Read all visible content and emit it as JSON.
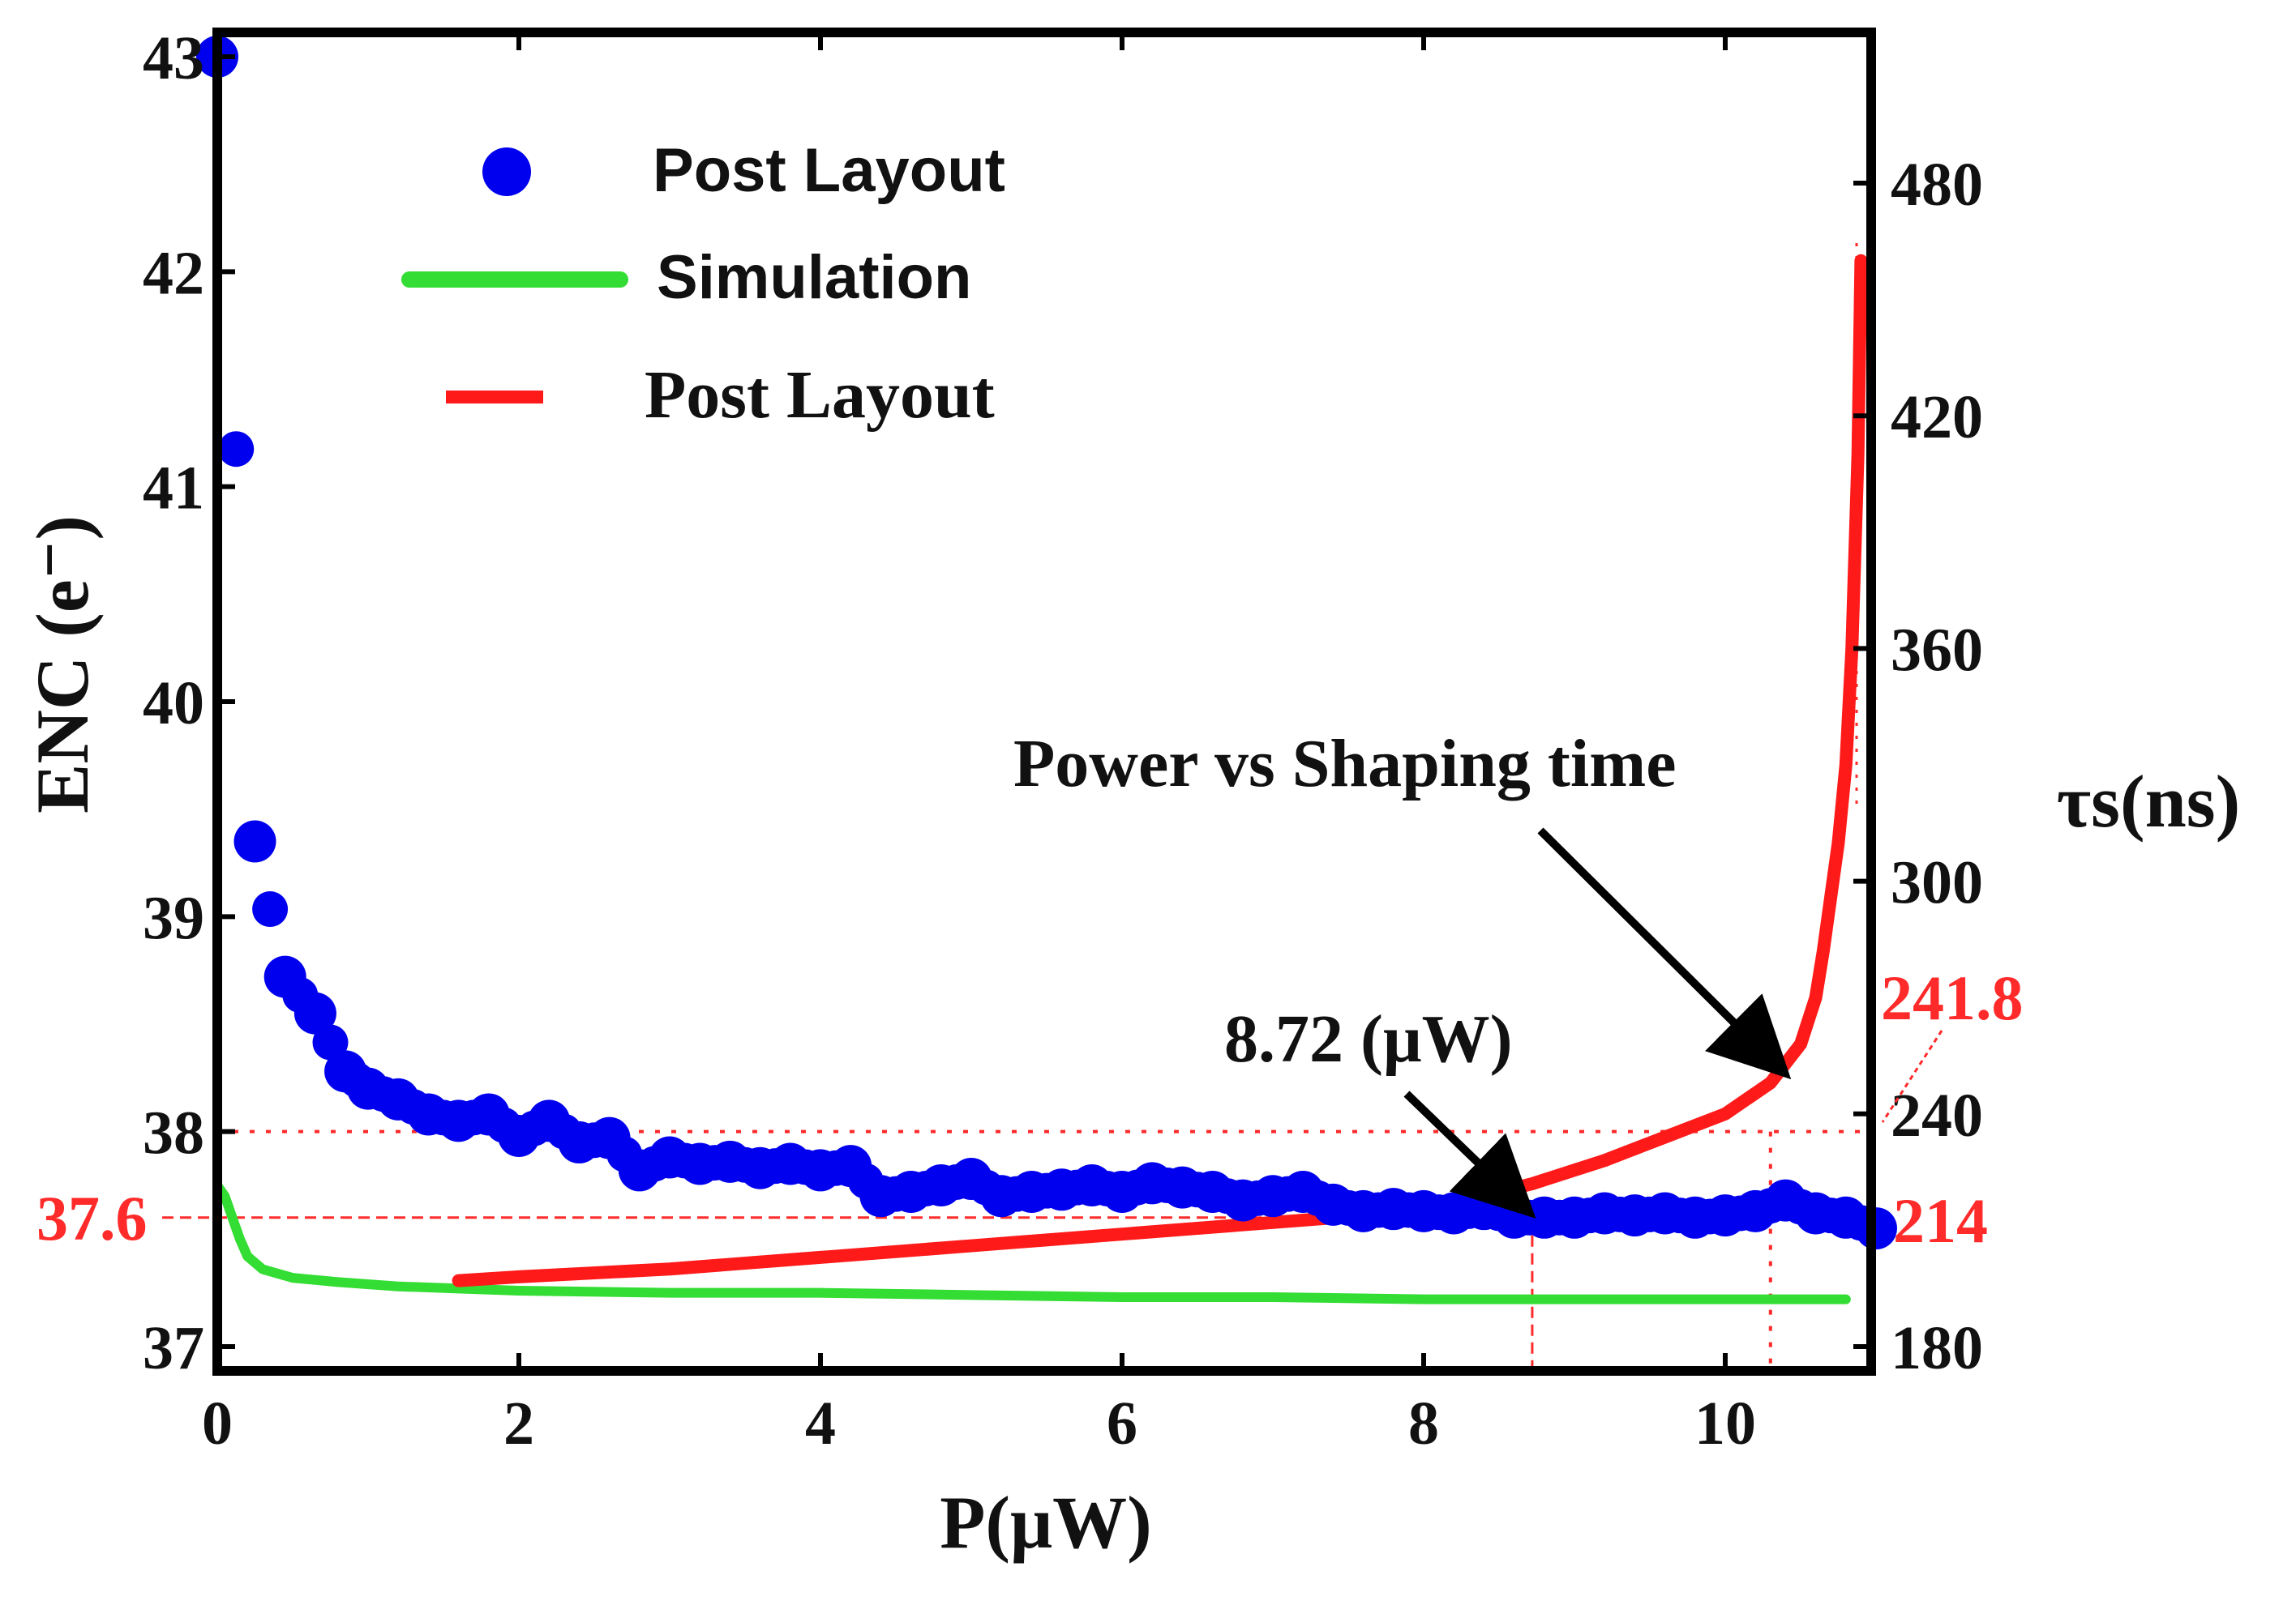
{
  "chart_data": {
    "type": "line",
    "xlabel": "P(μW)",
    "ylabel_left": "ENC (e⁻)",
    "ylabel_right": "τs(ns)",
    "xlim": [
      0,
      11
    ],
    "ylim_left": [
      37,
      43
    ],
    "ylim_right": [
      170,
      510
    ],
    "x_ticks": [
      "0",
      "2",
      "4",
      "6",
      "8",
      "10"
    ],
    "y_left_ticks": [
      "37",
      "38",
      "39",
      "40",
      "41",
      "42",
      "43"
    ],
    "y_right_ticks": [
      "180",
      "240",
      "300",
      "360",
      "420",
      "480"
    ],
    "legend": {
      "post_layout_enc": "Post Layout",
      "simulation": "Simulation",
      "post_layout_tau": "Post Layout"
    },
    "series": [
      {
        "name": "Post Layout",
        "axis": "left",
        "style": "markers",
        "color": "#0000ee",
        "x": [
          0.0,
          0.25,
          0.45,
          0.65,
          0.85,
          1.0,
          1.2,
          1.4,
          1.6,
          1.8,
          2.0,
          2.2,
          2.4,
          2.6,
          2.8,
          3.0,
          3.2,
          3.4,
          3.6,
          3.8,
          4.0,
          4.2,
          4.4,
          4.6,
          4.8,
          5.0,
          5.2,
          5.4,
          5.6,
          5.8,
          6.0,
          6.2,
          6.4,
          6.6,
          6.8,
          7.0,
          7.2,
          7.4,
          7.6,
          7.8,
          8.0,
          8.2,
          8.4,
          8.6,
          8.8,
          9.0,
          9.2,
          9.4,
          9.6,
          9.8,
          10.0,
          10.2,
          10.4,
          10.6,
          10.8,
          11.0
        ],
        "values": [
          43.0,
          39.35,
          38.72,
          38.55,
          38.28,
          38.2,
          38.15,
          38.08,
          38.05,
          38.08,
          37.98,
          38.05,
          37.95,
          37.97,
          37.82,
          37.88,
          37.85,
          37.86,
          37.83,
          37.85,
          37.82,
          37.84,
          37.7,
          37.72,
          37.75,
          37.78,
          37.7,
          37.72,
          37.73,
          37.75,
          37.72,
          37.76,
          37.74,
          37.72,
          37.68,
          37.7,
          37.72,
          37.66,
          37.63,
          37.64,
          37.63,
          37.62,
          37.64,
          37.6,
          37.6,
          37.6,
          37.62,
          37.61,
          37.62,
          37.6,
          37.61,
          37.63,
          37.68,
          37.62,
          37.6,
          37.55
        ]
      },
      {
        "name": "Simulation",
        "axis": "left",
        "style": "line",
        "color": "#33dd33",
        "x": [
          0.0,
          0.05,
          0.1,
          0.15,
          0.2,
          0.3,
          0.5,
          0.8,
          1.2,
          1.6,
          2.0,
          3.0,
          4.0,
          5.0,
          6.0,
          7.0,
          8.0,
          9.0,
          10.0,
          10.8
        ],
        "values": [
          37.75,
          37.7,
          37.6,
          37.5,
          37.42,
          37.36,
          37.32,
          37.3,
          37.28,
          37.27,
          37.26,
          37.25,
          37.25,
          37.24,
          37.23,
          37.23,
          37.22,
          37.22,
          37.22,
          37.22
        ]
      },
      {
        "name": "Post Layout",
        "axis": "right",
        "style": "line",
        "color": "#ff1a1a",
        "x": [
          1.6,
          2.0,
          3.0,
          4.0,
          5.0,
          6.0,
          7.0,
          8.0,
          8.72,
          9.2,
          9.6,
          10.0,
          10.3,
          10.5,
          10.6,
          10.65,
          10.7,
          10.75,
          10.8,
          10.84,
          10.88,
          10.9
        ],
        "values": [
          197,
          198,
          200,
          203,
          206,
          209,
          212,
          215,
          222,
          228,
          234,
          240,
          248,
          258,
          270,
          282,
          296,
          310,
          330,
          360,
          410,
          460
        ]
      }
    ],
    "reference_lines": {
      "enc_level": 37.6,
      "enc_level_38": 38.0,
      "power_optimum": 8.72,
      "power_right": 10.3,
      "tau_level_low": 214,
      "tau_level_high": 241.8
    },
    "annotations": {
      "enc_marker": "37.6",
      "power_marker": "8.72 (μW)",
      "tau_low_marker": "214",
      "tau_high_marker": "241.8",
      "curve_label": "Power vs Shaping time"
    }
  }
}
